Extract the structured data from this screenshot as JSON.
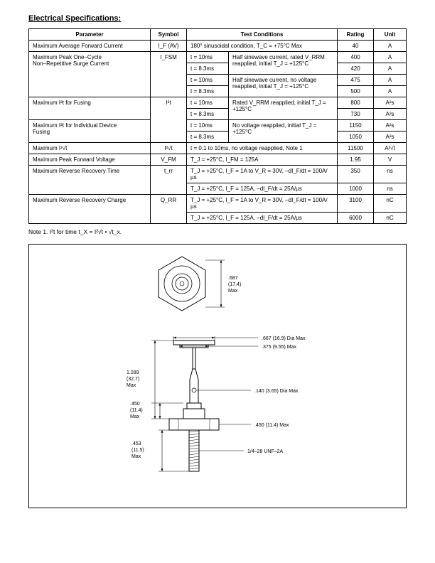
{
  "section_title": "Electrical Specifications:",
  "headers": {
    "param": "Parameter",
    "symbol": "Symbol",
    "cond": "Test Conditions",
    "rating": "Rating",
    "unit": "Unit"
  },
  "rows": {
    "r1": {
      "param": "Maximum Average Forward Current",
      "sym": "I_F (AV)",
      "cond": "180° sinusoidal condition, T_C = +75°C Max",
      "rat": "40",
      "unit": "A"
    },
    "r2": {
      "param": "Maximum Peak One–Cycle\n   Non–Repetitive Surge Current",
      "sym": "I_FSM",
      "t1": "t = 10ms",
      "c1": "Half sinewave current, rated V_RRM reapplied, initial T_J = +125°C",
      "rat1": "400",
      "unit1": "A",
      "t2": "t = 8.3ms",
      "rat2": "420",
      "unit2": "A",
      "t3": "t = 10ms",
      "c2": "Half sinewave current, no voltage reapplied, initial T_J = +125°C",
      "rat3": "475",
      "unit3": "A",
      "t4": "t = 8.3ms",
      "rat4": "500",
      "unit4": "A"
    },
    "r3": {
      "param": "Maximum I²t for Fusing",
      "sym": "I²t",
      "t1": "t = 10ms",
      "c1": "Rated V_RRM reapplied, initial T_J = +125°C",
      "rat1": "800",
      "unit1": "A²s",
      "t2": "t = 8.3ms",
      "rat2": "730",
      "unit2": "A²s"
    },
    "r4": {
      "param": "Maximum I²t for Individual Device\n   Fusing",
      "t1": "t = 10ms",
      "c1": "No voltage reapplied, initial T_J = +125°C",
      "rat1": "1150",
      "unit1": "A²s",
      "t2": "t = 8.3ms",
      "rat2": "1050",
      "unit2": "A²s"
    },
    "r5": {
      "param": "Maximum I²√t",
      "sym": "I²√t",
      "cond": "t = 0.1 to 10ms, no voltage reapplied, Note 1",
      "rat": "11500",
      "unit": "A²√t"
    },
    "r6": {
      "param": "Maximum Peak Forward Voltage",
      "sym": "V_FM",
      "cond": "T_J = +25°C, I_FM = 125A",
      "rat": "1.95",
      "unit": "V"
    },
    "r7": {
      "param": "Maximum Reverse Recovery Time",
      "sym": "t_rr",
      "c1": "T_J = +25°C, I_F = 1A to V_R = 30V, –dI_F/dt = 100A/µs",
      "rat1": "350",
      "unit1": "ns",
      "c2": "T_J = +25°C, I_F = 125A, –dI_F/dt = 25A/µs",
      "rat2": "1000",
      "unit2": "ns"
    },
    "r8": {
      "param": "Maximum Reverse Recovery Charge",
      "sym": "Q_RR",
      "c1": "T_J = +25°C, I_F = 1A to V_R = 30V, –dI_F/dt = 100A/µs",
      "rat1": "3100",
      "unit1": "nC",
      "c2": "T_J = +25°C, I_F = 125A, –dI_F/dt = 25A/µs",
      "rat2": "6000",
      "unit2": "nC"
    }
  },
  "note": "Note  1.  I²t for time t_X = I²√t • √t_x.",
  "diagram": {
    "labels": {
      "hex_h": ".687\n(17.4)\nMax",
      "dia1": ".667 (16.9) Dia Max",
      "dia2": ".375 (9.55) Max",
      "dia3": ".140 (3.65) Dia Max",
      "body_h": "1.289\n(32.7)\nMax",
      "flat": ".450\n(11.4)\nMax",
      "hexw": ".450 (11.4) Max",
      "stud": ".453\n(11.5)\nMax",
      "thread": "1/4–28 UNF–2A"
    },
    "stroke": "#000000",
    "fill": "#ffffff",
    "text_size": 7
  }
}
